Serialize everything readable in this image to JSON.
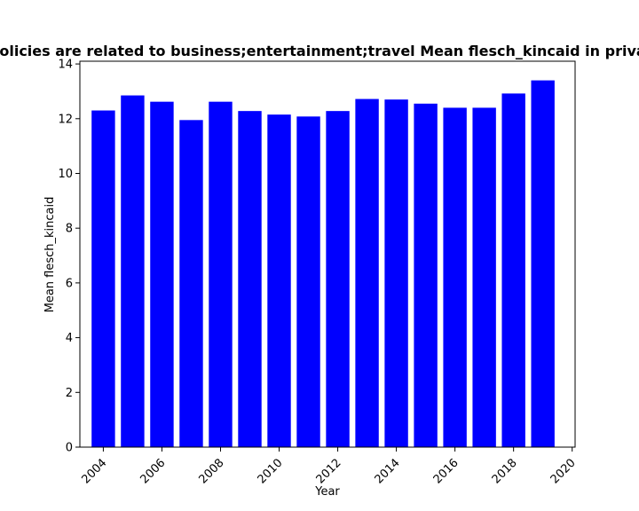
{
  "chart_data": {
    "type": "bar",
    "title": "Privacy policies are related to business;entertainment;travel Mean flesch_kincaid in privacy policies",
    "xlabel": "Year",
    "ylabel": "Mean flesch_kincaid",
    "x": [
      2004,
      2005,
      2006,
      2007,
      2008,
      2009,
      2010,
      2011,
      2012,
      2013,
      2014,
      2015,
      2016,
      2017,
      2018,
      2019
    ],
    "values": [
      12.3,
      12.85,
      12.62,
      11.95,
      12.62,
      12.28,
      12.15,
      12.08,
      12.28,
      12.72,
      12.7,
      12.55,
      12.4,
      12.4,
      12.92,
      13.4
    ],
    "xlim": [
      2003.2,
      2020.1
    ],
    "ylim": [
      0,
      14.1
    ],
    "xticks": [
      2004,
      2006,
      2008,
      2010,
      2012,
      2014,
      2016,
      2018,
      2020
    ],
    "xtick_labels": [
      "2004",
      "2006",
      "2008",
      "2010",
      "2012",
      "2014",
      "2016",
      "2018",
      "2020"
    ],
    "yticks": [
      0,
      2,
      4,
      6,
      8,
      10,
      12,
      14
    ],
    "ytick_labels": [
      "0",
      "2",
      "4",
      "6",
      "8",
      "10",
      "12",
      "14"
    ],
    "bar_color": "#0000ff",
    "grid": false,
    "legend": "none"
  }
}
